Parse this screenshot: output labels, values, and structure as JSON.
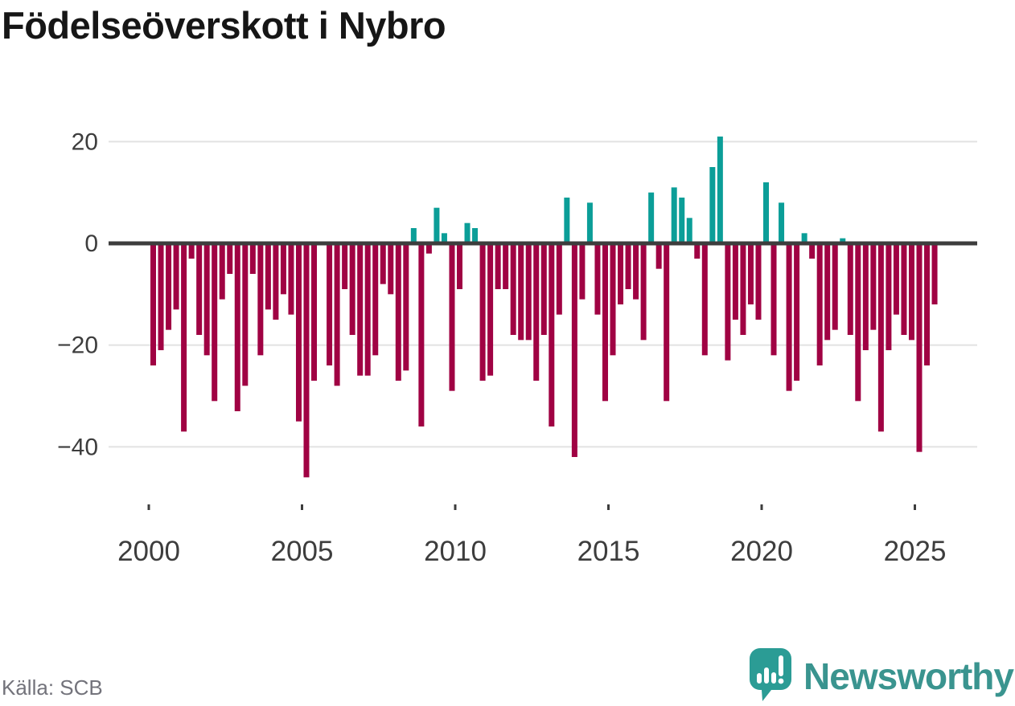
{
  "title": "Födelseöverskott i Nybro",
  "source": "Källa: SCB",
  "logo": {
    "brand": "Newsworthy",
    "icon": "speech-bubble-bar-chart-icon"
  },
  "chart_data": {
    "type": "bar",
    "title": "Födelseöverskott i Nybro",
    "xlabel": "",
    "ylabel": "",
    "x_unit": "quarter",
    "ylim": [
      -47,
      23
    ],
    "grid": true,
    "legend": "none",
    "yticks": [
      20,
      0,
      -20,
      -40
    ],
    "xticks": [
      2000,
      2005,
      2010,
      2015,
      2020,
      2025
    ],
    "colors": {
      "positive": "#0b9e98",
      "negative": "#a00243"
    },
    "categories": [
      "2000Q1",
      "2000Q2",
      "2000Q3",
      "2000Q4",
      "2001Q1",
      "2001Q2",
      "2001Q3",
      "2001Q4",
      "2002Q1",
      "2002Q2",
      "2002Q3",
      "2002Q4",
      "2003Q1",
      "2003Q2",
      "2003Q3",
      "2003Q4",
      "2004Q1",
      "2004Q2",
      "2004Q3",
      "2004Q4",
      "2005Q1",
      "2005Q2",
      "2005Q3",
      "2005Q4",
      "2006Q1",
      "2006Q2",
      "2006Q3",
      "2006Q4",
      "2007Q1",
      "2007Q2",
      "2007Q3",
      "2007Q4",
      "2008Q1",
      "2008Q2",
      "2008Q3",
      "2008Q4",
      "2009Q1",
      "2009Q2",
      "2009Q3",
      "2009Q4",
      "2010Q1",
      "2010Q2",
      "2010Q3",
      "2010Q4",
      "2011Q1",
      "2011Q2",
      "2011Q3",
      "2011Q4",
      "2012Q1",
      "2012Q2",
      "2012Q3",
      "2012Q4",
      "2013Q1",
      "2013Q2",
      "2013Q3",
      "2013Q4",
      "2014Q1",
      "2014Q2",
      "2014Q3",
      "2014Q4",
      "2015Q1",
      "2015Q2",
      "2015Q3",
      "2015Q4",
      "2016Q1",
      "2016Q2",
      "2016Q3",
      "2016Q4",
      "2017Q1",
      "2017Q2",
      "2017Q3",
      "2017Q4",
      "2018Q1",
      "2018Q2",
      "2018Q3",
      "2018Q4",
      "2019Q1",
      "2019Q2",
      "2019Q3",
      "2019Q4",
      "2020Q1",
      "2020Q2",
      "2020Q3",
      "2020Q4",
      "2021Q1",
      "2021Q2",
      "2021Q3",
      "2021Q4",
      "2022Q1",
      "2022Q2",
      "2022Q3",
      "2022Q4",
      "2023Q1",
      "2023Q2",
      "2023Q3",
      "2023Q4",
      "2024Q1",
      "2024Q2",
      "2024Q3",
      "2024Q4",
      "2025Q1",
      "2025Q2",
      "2025Q3"
    ],
    "values": [
      -24,
      -21,
      -17,
      -13,
      -37,
      -3,
      -18,
      -22,
      -31,
      -11,
      -6,
      -33,
      -28,
      -6,
      -22,
      -13,
      -15,
      -10,
      -14,
      -35,
      -46,
      -27,
      0,
      -24,
      -28,
      -9,
      -18,
      -26,
      -26,
      -22,
      -8,
      -10,
      -27,
      -25,
      3,
      -36,
      -2,
      7,
      2,
      -29,
      -9,
      4,
      3,
      -27,
      -26,
      -9,
      -9,
      -18,
      -19,
      -19,
      -27,
      -18,
      -36,
      -14,
      9,
      -42,
      -11,
      8,
      -14,
      -31,
      -22,
      -12,
      -9,
      -11,
      -19,
      10,
      -5,
      -31,
      11,
      9,
      5,
      -3,
      -22,
      15,
      21,
      -23,
      -15,
      -18,
      -12,
      -15,
      12,
      -22,
      8,
      -29,
      -27,
      2,
      -3,
      -24,
      -19,
      -17,
      1,
      -18,
      -31,
      -21,
      -17,
      -37,
      -21,
      -14,
      -18,
      -19,
      -41,
      -24,
      -12
    ]
  }
}
